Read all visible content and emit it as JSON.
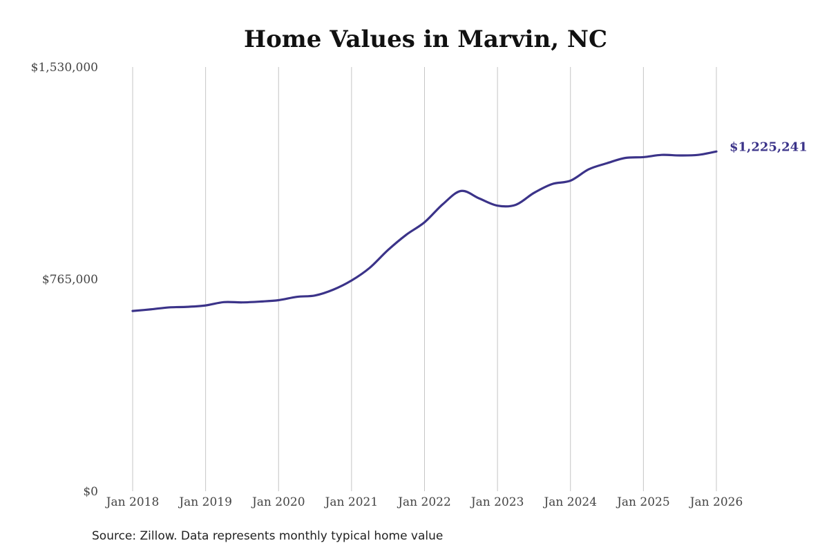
{
  "chart_data": {
    "type": "line",
    "title": "Home Values in Marvin, NC",
    "source": "Source: Zillow. Data represents monthly typical home value",
    "ylim": [
      0,
      1530000
    ],
    "y_ticks": [
      {
        "value": 0,
        "label": "$0"
      },
      {
        "value": 765000,
        "label": "$765,000"
      },
      {
        "value": 1530000,
        "label": "$1,530,000"
      }
    ],
    "x_ticks": [
      {
        "value": "2018-01",
        "label": "Jan 2018"
      },
      {
        "value": "2019-01",
        "label": "Jan 2019"
      },
      {
        "value": "2020-01",
        "label": "Jan 2020"
      },
      {
        "value": "2021-01",
        "label": "Jan 2021"
      },
      {
        "value": "2022-01",
        "label": "Jan 2022"
      },
      {
        "value": "2023-01",
        "label": "Jan 2023"
      },
      {
        "value": "2024-01",
        "label": "Jan 2024"
      },
      {
        "value": "2025-01",
        "label": "Jan 2025"
      },
      {
        "value": "2026-01",
        "label": "Jan 2026"
      }
    ],
    "vertical_grid": true,
    "line_color": "#3b3389",
    "grid_color": "#c4c4c4",
    "series": [
      {
        "end_label": "$1,225,241",
        "points": [
          [
            "2018-01",
            650000
          ],
          [
            "2018-04",
            656000
          ],
          [
            "2018-07",
            663000
          ],
          [
            "2018-10",
            665000
          ],
          [
            "2019-01",
            670000
          ],
          [
            "2019-04",
            682000
          ],
          [
            "2019-07",
            681000
          ],
          [
            "2019-10",
            684000
          ],
          [
            "2020-01",
            689000
          ],
          [
            "2020-04",
            701000
          ],
          [
            "2020-07",
            706000
          ],
          [
            "2020-10",
            727000
          ],
          [
            "2021-01",
            760000
          ],
          [
            "2021-04",
            806000
          ],
          [
            "2021-07",
            870000
          ],
          [
            "2021-10",
            925000
          ],
          [
            "2022-01",
            970000
          ],
          [
            "2022-04",
            1035000
          ],
          [
            "2022-07",
            1083000
          ],
          [
            "2022-10",
            1056000
          ],
          [
            "2023-01",
            1030000
          ],
          [
            "2023-04",
            1033000
          ],
          [
            "2023-07",
            1076000
          ],
          [
            "2023-10",
            1108000
          ],
          [
            "2024-01",
            1120000
          ],
          [
            "2024-04",
            1161000
          ],
          [
            "2024-07",
            1183000
          ],
          [
            "2024-10",
            1202000
          ],
          [
            "2025-01",
            1205000
          ],
          [
            "2025-04",
            1213000
          ],
          [
            "2025-07",
            1211000
          ],
          [
            "2025-10",
            1213000
          ],
          [
            "2026-01",
            1225241
          ]
        ]
      }
    ]
  }
}
